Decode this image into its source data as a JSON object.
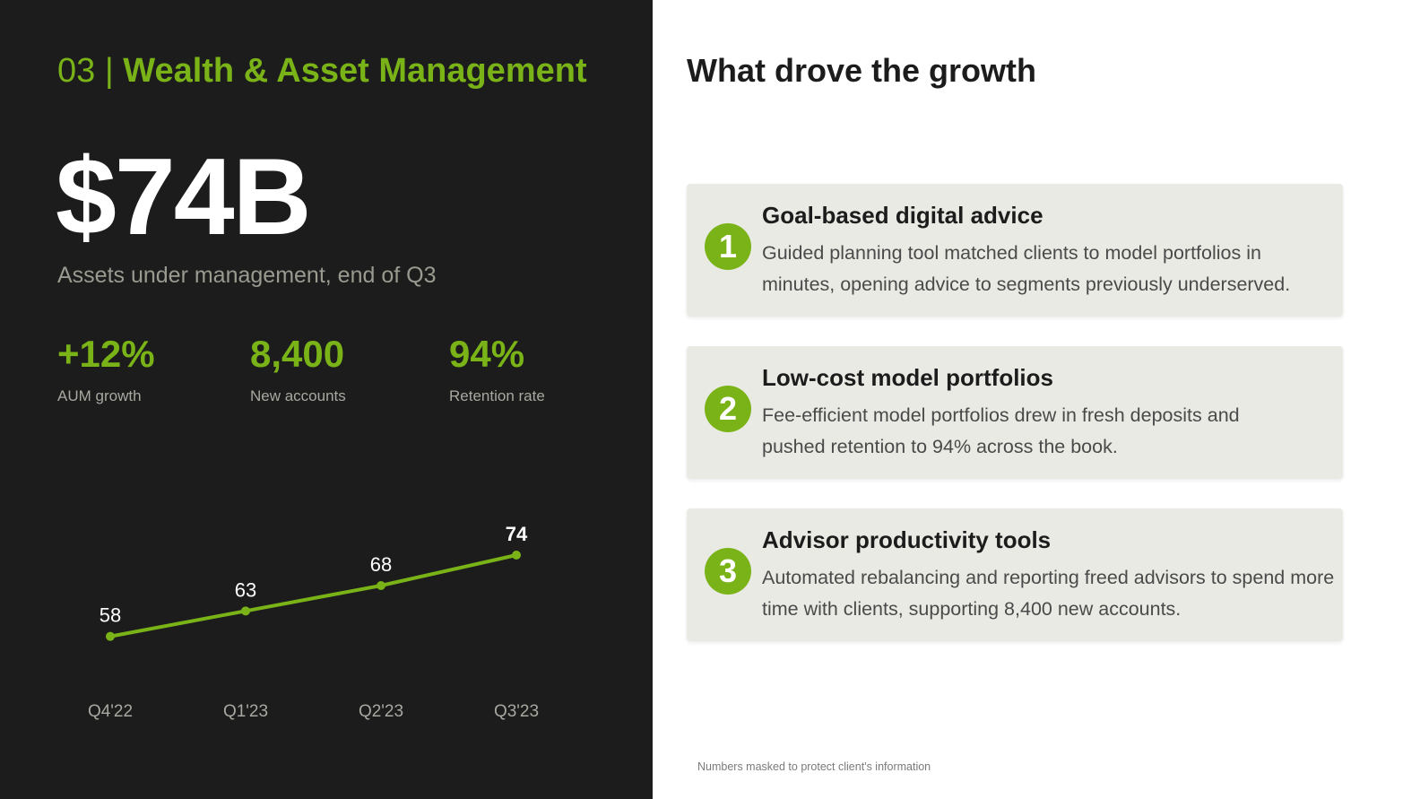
{
  "left_panel": {
    "section_number": "03 |",
    "section_name": "Wealth & Asset Management",
    "headline_value": "$74B",
    "headline_caption": "Assets under management, end of Q3",
    "stats": [
      {
        "value": "+12%",
        "label": "AUM growth"
      },
      {
        "value": "8,400",
        "label": "New accounts"
      },
      {
        "value": "94%",
        "label": "Retention rate"
      }
    ]
  },
  "chart_data": {
    "type": "line",
    "categories": [
      "Q4'22",
      "Q1'23",
      "Q2'23",
      "Q3'23"
    ],
    "series": [
      {
        "values": [
          58,
          63,
          68,
          74
        ]
      }
    ],
    "data_labels": [
      "58",
      "63",
      "68",
      "74"
    ],
    "ylim": [
      50,
      80
    ],
    "grid": false,
    "line_color": "#7ab317"
  },
  "right_panel": {
    "heading": "What drove the growth",
    "cards": [
      {
        "number": "1",
        "title": "Goal-based digital advice",
        "text": "Guided planning tool matched clients to model portfolios in minutes, opening advice to segments previously underserved."
      },
      {
        "number": "2",
        "title": "Low-cost model portfolios",
        "text": "Fee-efficient model portfolios drew in fresh deposits and pushed retention to 94% across the book."
      },
      {
        "number": "3",
        "title": "Advisor productivity tools",
        "text": "Automated rebalancing and reporting freed advisors to spend more time with clients, supporting 8,400 new accounts."
      }
    ],
    "footnote": "Numbers masked to protect client's information"
  },
  "colors": {
    "accent": "#7ab317",
    "dark_bg": "#1c1c1c",
    "card_bg": "#eaeae4"
  }
}
